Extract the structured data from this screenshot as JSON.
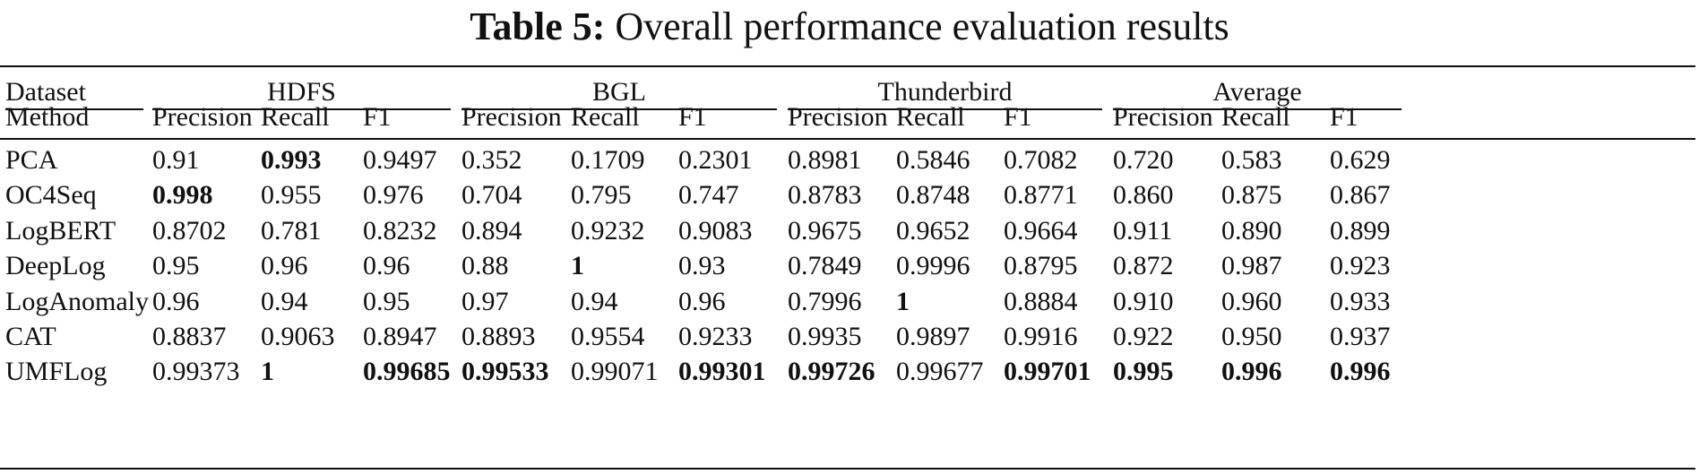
{
  "caption": {
    "label": "Table 5:",
    "text": "Overall performance evaluation results"
  },
  "header": {
    "dataset_label": "Dataset",
    "method_label": "Method",
    "groups": [
      "HDFS",
      "BGL",
      "Thunderbird",
      "Average"
    ],
    "metrics": [
      "Precision",
      "Recall",
      "F1"
    ]
  },
  "rows": [
    {
      "method": "PCA",
      "values": [
        "0.91",
        "0.993",
        "0.9497",
        "0.352",
        "0.1709",
        "0.2301",
        "0.8981",
        "0.5846",
        "0.7082",
        "0.720",
        "0.583",
        "0.629"
      ],
      "bold": [
        1
      ]
    },
    {
      "method": "OC4Seq",
      "values": [
        "0.998",
        "0.955",
        "0.976",
        "0.704",
        "0.795",
        "0.747",
        "0.8783",
        "0.8748",
        "0.8771",
        "0.860",
        "0.875",
        "0.867"
      ],
      "bold": [
        0
      ]
    },
    {
      "method": "LogBERT",
      "values": [
        "0.8702",
        "0.781",
        "0.8232",
        "0.894",
        "0.9232",
        "0.9083",
        "0.9675",
        "0.9652",
        "0.9664",
        "0.911",
        "0.890",
        "0.899"
      ],
      "bold": []
    },
    {
      "method": "DeepLog",
      "values": [
        "0.95",
        "0.96",
        "0.96",
        "0.88",
        "1",
        "0.93",
        "0.7849",
        "0.9996",
        "0.8795",
        "0.872",
        "0.987",
        "0.923"
      ],
      "bold": [
        4
      ]
    },
    {
      "method": "LogAnomaly",
      "values": [
        "0.96",
        "0.94",
        "0.95",
        "0.97",
        "0.94",
        "0.96",
        "0.7996",
        "1",
        "0.8884",
        "0.910",
        "0.960",
        "0.933"
      ],
      "bold": [
        7
      ]
    },
    {
      "method": "CAT",
      "values": [
        "0.8837",
        "0.9063",
        "0.8947",
        "0.8893",
        "0.9554",
        "0.9233",
        "0.9935",
        "0.9897",
        "0.9916",
        "0.922",
        "0.950",
        "0.937"
      ],
      "bold": []
    },
    {
      "method": "UMFLog",
      "values": [
        "0.99373",
        "1",
        "0.99685",
        "0.99533",
        "0.99071",
        "0.99301",
        "0.99726",
        "0.99677",
        "0.99701",
        "0.995",
        "0.996",
        "0.996"
      ],
      "bold": [
        1,
        2,
        3,
        5,
        6,
        8,
        9,
        10,
        11
      ]
    }
  ]
}
